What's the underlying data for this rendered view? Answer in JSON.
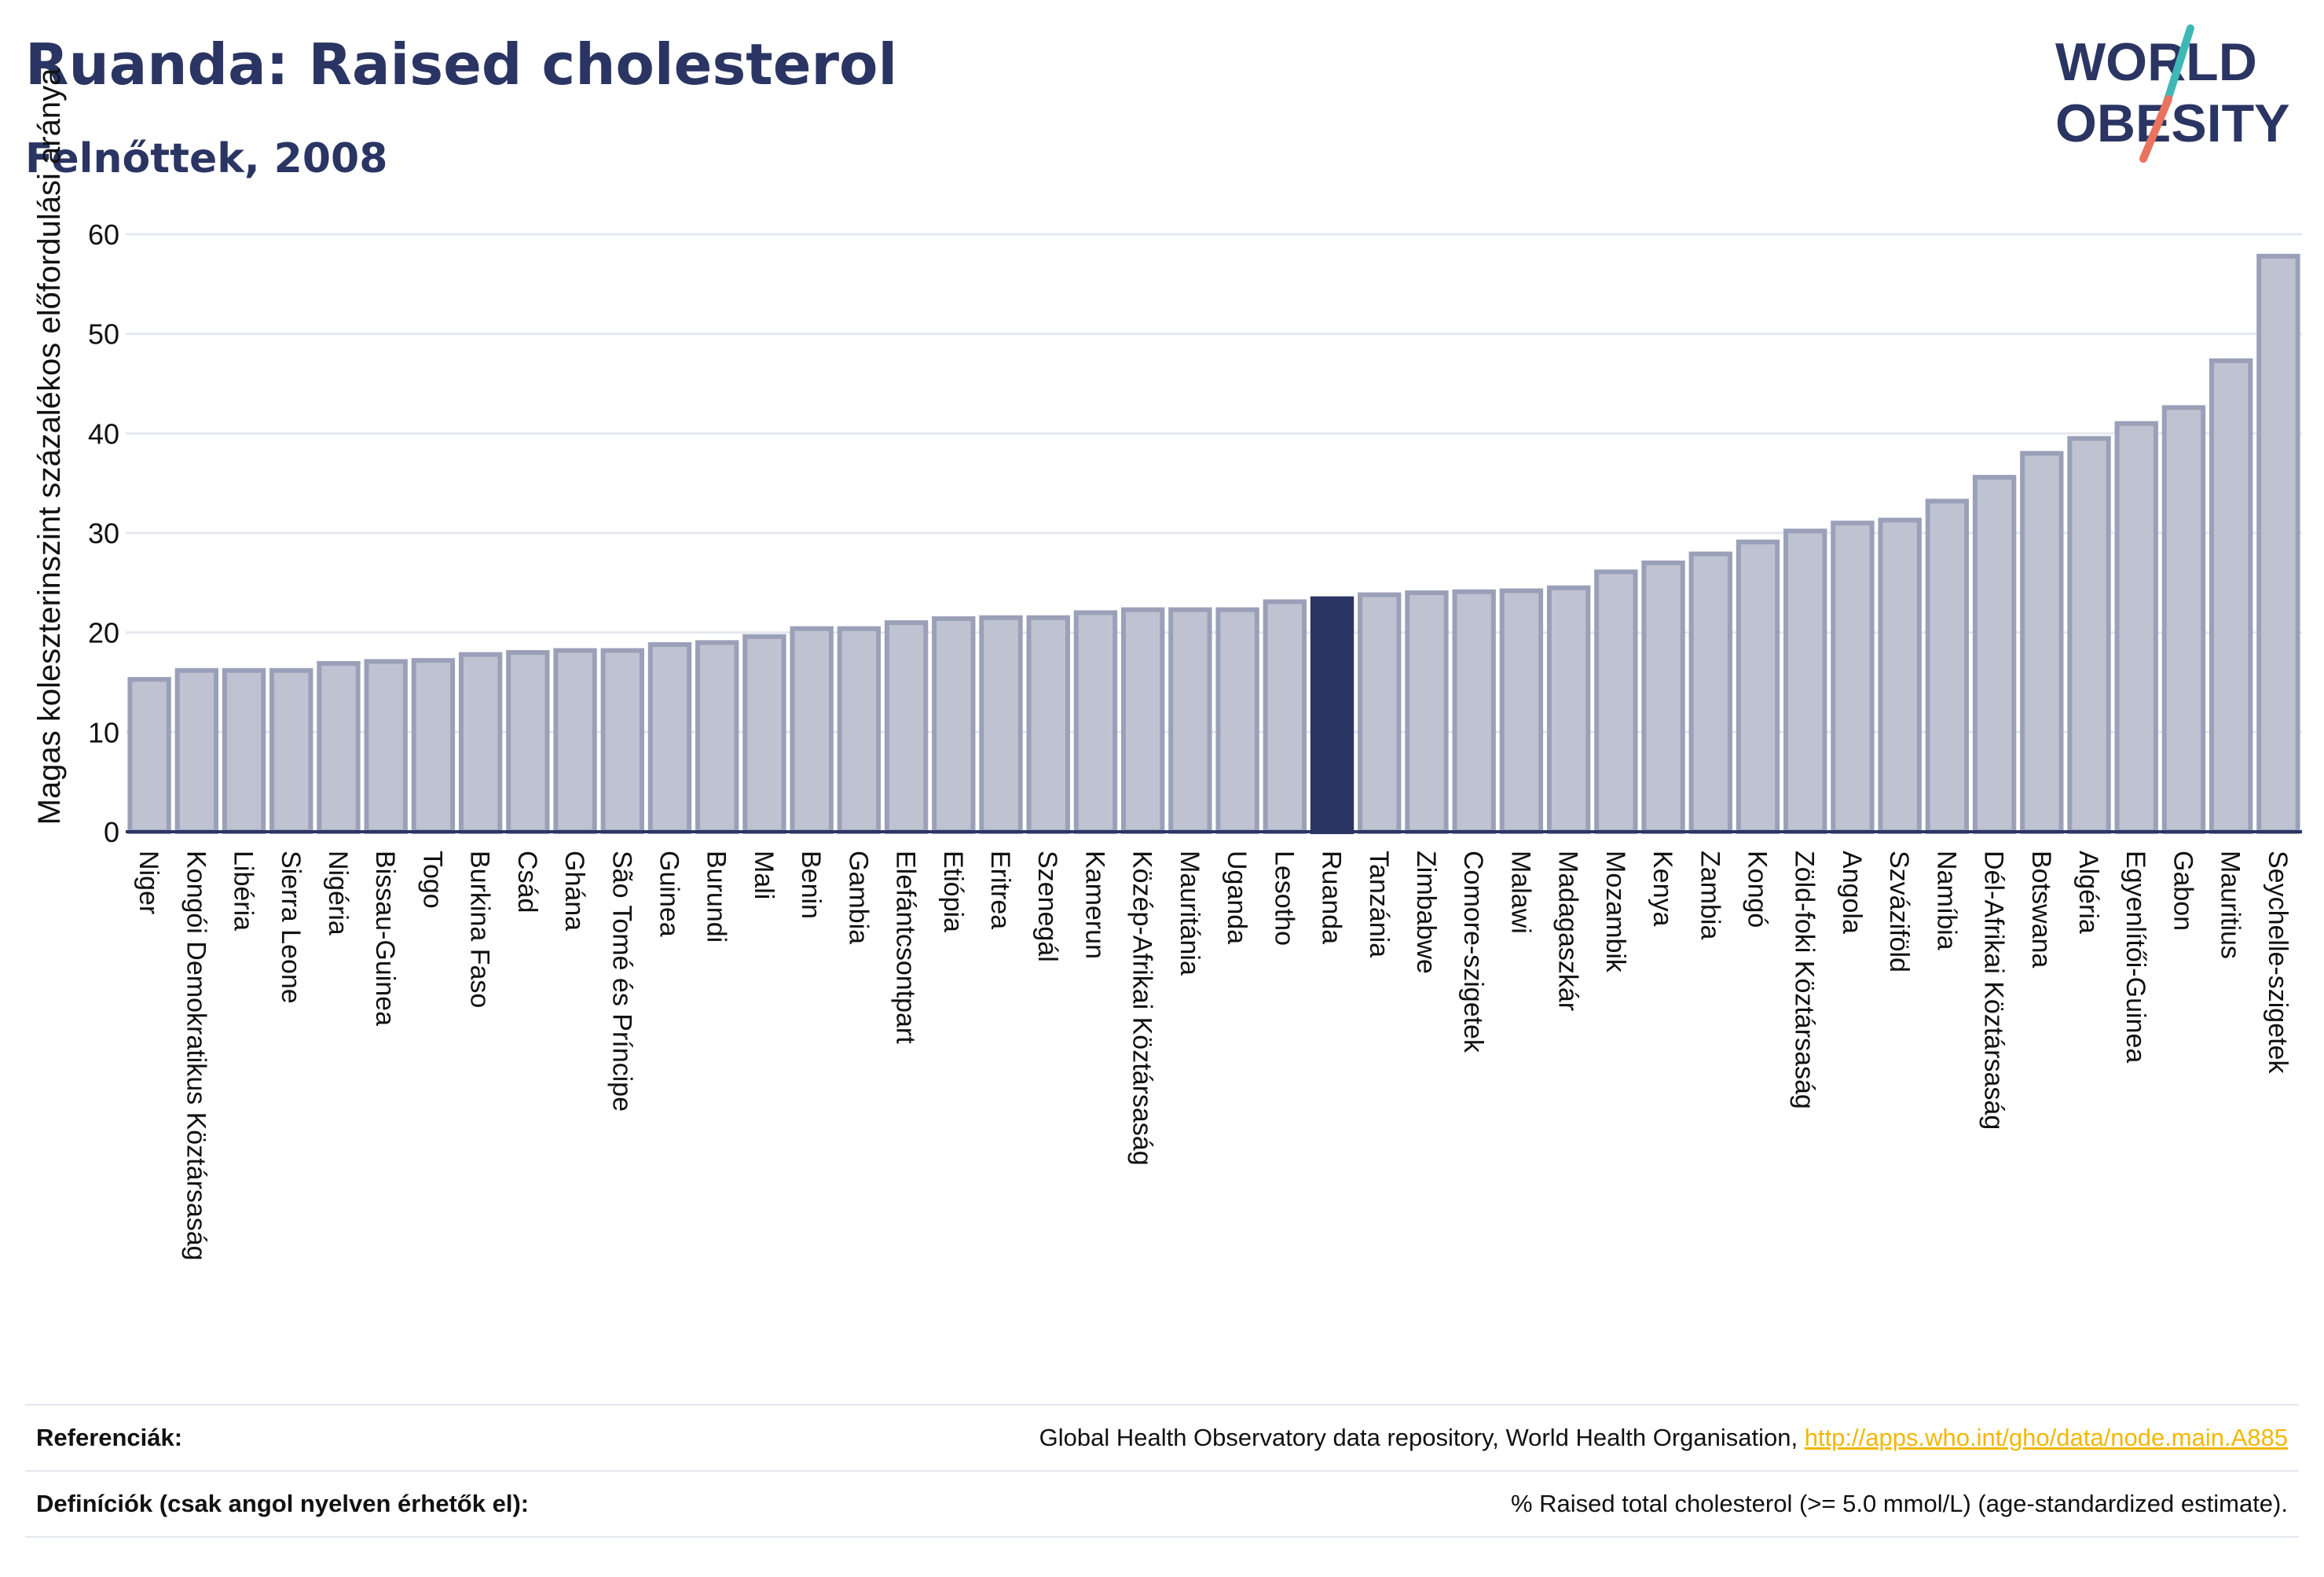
{
  "header": {
    "title": "Ruanda: Raised cholesterol",
    "subtitle": "Felnőttek, 2008"
  },
  "logo": {
    "line1": "WORLD",
    "line2": "OBESITY",
    "colors": {
      "text": "#2b3563",
      "slash_top": "#3fb8b5",
      "slash_bottom": "#e8735f"
    }
  },
  "footer": {
    "references_label": "Referenciák:",
    "references_text": "Global Health Observatory data repository, World Health Organisation,",
    "references_link": "http://apps.who.int/gho/data/node.main.A885",
    "definitions_label": "Definíciók (csak angol nyelven érhetők el):",
    "definitions_text": "% Raised total cholesterol (>= 5.0 mmol/L) (age-standardized estimate)."
  },
  "chart_data": {
    "type": "bar",
    "ylabel": "Magas koleszterinszint százalékos előfordulási aránya",
    "xlabel": "",
    "ylim": [
      0,
      60
    ],
    "yticks": [
      0,
      10,
      20,
      30,
      40,
      50,
      60
    ],
    "grid": true,
    "highlight": "Ruanda",
    "colors": {
      "bar": "#bfc3d1",
      "bar_edge": "#9aa0b8",
      "highlight": "#2b3563",
      "axis": "#2b3563",
      "grid": "#e6e8ef"
    },
    "categories": [
      "Niger",
      "Kongói Demokratikus Köztársaság",
      "Libéria",
      "Sierra Leone",
      "Nigéria",
      "Bissau-Guinea",
      "Togo",
      "Burkina Faso",
      "Csád",
      "Ghána",
      "São Tomé és Príncipe",
      "Guinea",
      "Burundi",
      "Mali",
      "Benin",
      "Gambia",
      "Elefántcsontpart",
      "Etiópia",
      "Eritrea",
      "Szenegál",
      "Kamerun",
      "Közép-Afrikai Köztársaság",
      "Mauritánia",
      "Uganda",
      "Lesotho",
      "Ruanda",
      "Tanzánia",
      "Zimbabwe",
      "Comore-szigetek",
      "Malawi",
      "Madagaszkár",
      "Mozambik",
      "Kenya",
      "Zambia",
      "Kongó",
      "Zöld-foki Köztársaság",
      "Angola",
      "Szváziföld",
      "Namíbia",
      "Dél-Afrikai Köztársaság",
      "Botswana",
      "Algéria",
      "Egyenlítői-Guinea",
      "Gabon",
      "Mauritius",
      "Seychelle-szigetek"
    ],
    "values": [
      15.3,
      16.2,
      16.2,
      16.2,
      16.9,
      17.1,
      17.2,
      17.8,
      18.0,
      18.2,
      18.2,
      18.8,
      19.0,
      19.6,
      20.4,
      20.4,
      21.0,
      21.4,
      21.5,
      21.5,
      22.0,
      22.3,
      22.3,
      22.3,
      23.1,
      23.4,
      23.8,
      24.0,
      24.1,
      24.2,
      24.5,
      26.1,
      27.0,
      27.9,
      29.1,
      30.2,
      31.0,
      31.3,
      33.2,
      35.6,
      38.0,
      39.5,
      41.0,
      42.6,
      47.3,
      57.8
    ]
  }
}
